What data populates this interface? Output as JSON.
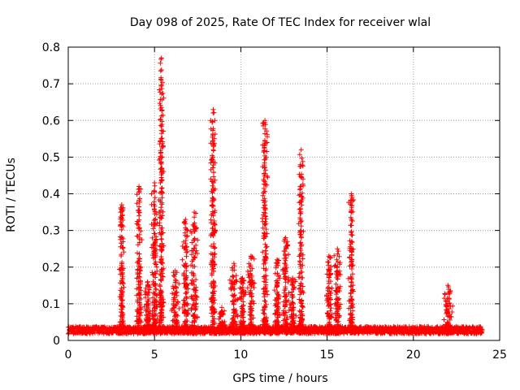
{
  "chart_data": {
    "type": "scatter",
    "title": "Day 098 of 2025, Rate Of TEC Index for receiver wlal",
    "xlabel": "GPS time / hours",
    "ylabel": "ROTI / TECUs",
    "xlim": [
      0,
      25
    ],
    "ylim": [
      0,
      0.8
    ],
    "xticks": [
      "0",
      "5",
      "10",
      "15",
      "20",
      "25"
    ],
    "yticks": [
      "0",
      "0.1",
      "0.2",
      "0.3",
      "0.4",
      "0.5",
      "0.6",
      "0.7",
      "0.8"
    ],
    "grid": true,
    "marker": "+",
    "color": "#ff0000",
    "baseline": {
      "x_start": 0,
      "x_end": 24,
      "level": 0.025,
      "noise": 0.02
    },
    "bursts": [
      {
        "center": 3.1,
        "width": 0.25,
        "peak": 0.37
      },
      {
        "center": 4.1,
        "width": 0.25,
        "peak": 0.42
      },
      {
        "center": 4.6,
        "width": 0.3,
        "peak": 0.16
      },
      {
        "center": 5.0,
        "width": 0.3,
        "peak": 0.43
      },
      {
        "center": 5.4,
        "width": 0.25,
        "peak": 0.77
      },
      {
        "center": 6.2,
        "width": 0.35,
        "peak": 0.19
      },
      {
        "center": 6.8,
        "width": 0.3,
        "peak": 0.33
      },
      {
        "center": 7.3,
        "width": 0.35,
        "peak": 0.35
      },
      {
        "center": 8.4,
        "width": 0.25,
        "peak": 0.63
      },
      {
        "center": 8.9,
        "width": 0.3,
        "peak": 0.09
      },
      {
        "center": 9.6,
        "width": 0.35,
        "peak": 0.21
      },
      {
        "center": 10.1,
        "width": 0.3,
        "peak": 0.17
      },
      {
        "center": 10.6,
        "width": 0.3,
        "peak": 0.23
      },
      {
        "center": 11.4,
        "width": 0.25,
        "peak": 0.6
      },
      {
        "center": 12.1,
        "width": 0.3,
        "peak": 0.22
      },
      {
        "center": 12.6,
        "width": 0.3,
        "peak": 0.28
      },
      {
        "center": 13.0,
        "width": 0.3,
        "peak": 0.17
      },
      {
        "center": 13.5,
        "width": 0.25,
        "peak": 0.52
      },
      {
        "center": 15.1,
        "width": 0.3,
        "peak": 0.23
      },
      {
        "center": 15.6,
        "width": 0.3,
        "peak": 0.25
      },
      {
        "center": 16.4,
        "width": 0.25,
        "peak": 0.4
      },
      {
        "center": 22.0,
        "width": 0.4,
        "peak": 0.15
      }
    ]
  }
}
